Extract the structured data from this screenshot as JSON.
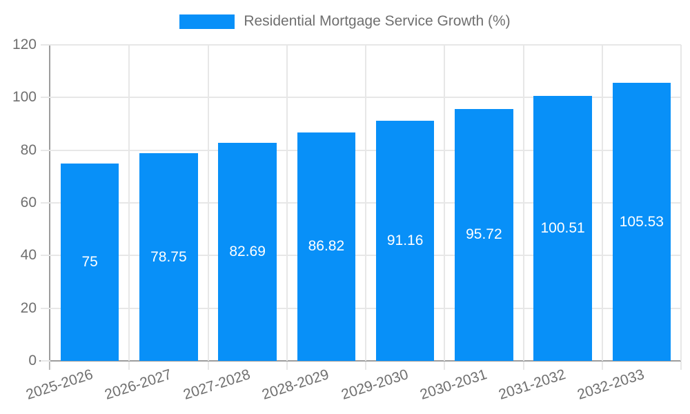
{
  "colors": {
    "bar": "#0890f8",
    "grid": "#e7e7e7",
    "axis": "#9c9c9c",
    "tick_text": "#6f6f6f",
    "bar_label": "#ffffff"
  },
  "chart_data": {
    "type": "bar",
    "title": "Residential Mortgage Service Growth (%)",
    "categories": [
      "2025-2026",
      "2026-2027",
      "2027-2028",
      "2028-2029",
      "2029-2030",
      "2030-2031",
      "2031-2032",
      "2032-2033"
    ],
    "values": [
      75,
      78.75,
      82.69,
      86.82,
      91.16,
      95.72,
      100.51,
      105.53
    ],
    "value_labels": [
      "75",
      "78.75",
      "82.69",
      "86.82",
      "91.16",
      "95.72",
      "100.51",
      "105.53"
    ],
    "xlabel": "",
    "ylabel": "",
    "ylim": [
      0,
      120
    ],
    "yticks": [
      0,
      20,
      40,
      60,
      80,
      100,
      120
    ],
    "grid": true,
    "legend_position": "top",
    "x_label_rotation_deg": -18
  }
}
